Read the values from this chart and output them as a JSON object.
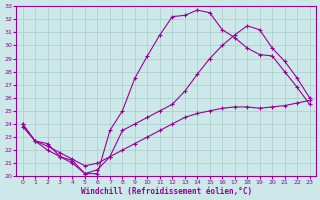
{
  "xlabel": "Windchill (Refroidissement éolien,°C)",
  "bg_color": "#cce8e8",
  "line_color": "#990099",
  "grid_color": "#aacccc",
  "line1_x": [
    0,
    1,
    2,
    3,
    4,
    5,
    6,
    7,
    8,
    9,
    10,
    11,
    12,
    13,
    14,
    15,
    16,
    17,
    18,
    19,
    20,
    21,
    22,
    23
  ],
  "line1_y": [
    24.0,
    22.7,
    22.5,
    21.5,
    21.2,
    20.2,
    20.2,
    23.5,
    25.0,
    27.5,
    29.2,
    30.8,
    32.2,
    32.3,
    32.7,
    32.5,
    31.2,
    30.6,
    29.8,
    29.3,
    29.2,
    28.0,
    26.8,
    25.5
  ],
  "line2_x": [
    0,
    1,
    2,
    3,
    4,
    5,
    6,
    7,
    8,
    9,
    10,
    11,
    12,
    13,
    14,
    15,
    16,
    17,
    18,
    19,
    20,
    21,
    22,
    23
  ],
  "line2_y": [
    24.0,
    22.7,
    22.0,
    21.5,
    21.0,
    20.2,
    20.5,
    21.5,
    23.5,
    24.0,
    24.5,
    25.0,
    25.5,
    26.5,
    27.8,
    29.0,
    30.0,
    30.8,
    31.5,
    31.2,
    29.8,
    28.8,
    27.5,
    26.0
  ],
  "line3_x": [
    0,
    1,
    2,
    3,
    4,
    5,
    6,
    7,
    8,
    9,
    10,
    11,
    12,
    13,
    14,
    15,
    16,
    17,
    18,
    19,
    20,
    21,
    22,
    23
  ],
  "line3_y": [
    23.8,
    22.7,
    22.3,
    21.8,
    21.3,
    20.8,
    21.0,
    21.5,
    22.0,
    22.5,
    23.0,
    23.5,
    24.0,
    24.5,
    24.8,
    25.0,
    25.2,
    25.3,
    25.3,
    25.2,
    25.3,
    25.4,
    25.6,
    25.8
  ],
  "xlim": [
    -0.5,
    23.5
  ],
  "ylim": [
    20,
    33
  ],
  "xticks": [
    0,
    1,
    2,
    3,
    4,
    5,
    6,
    7,
    8,
    9,
    10,
    11,
    12,
    13,
    14,
    15,
    16,
    17,
    18,
    19,
    20,
    21,
    22,
    23
  ],
  "yticks": [
    20,
    21,
    22,
    23,
    24,
    25,
    26,
    27,
    28,
    29,
    30,
    31,
    32,
    33
  ]
}
